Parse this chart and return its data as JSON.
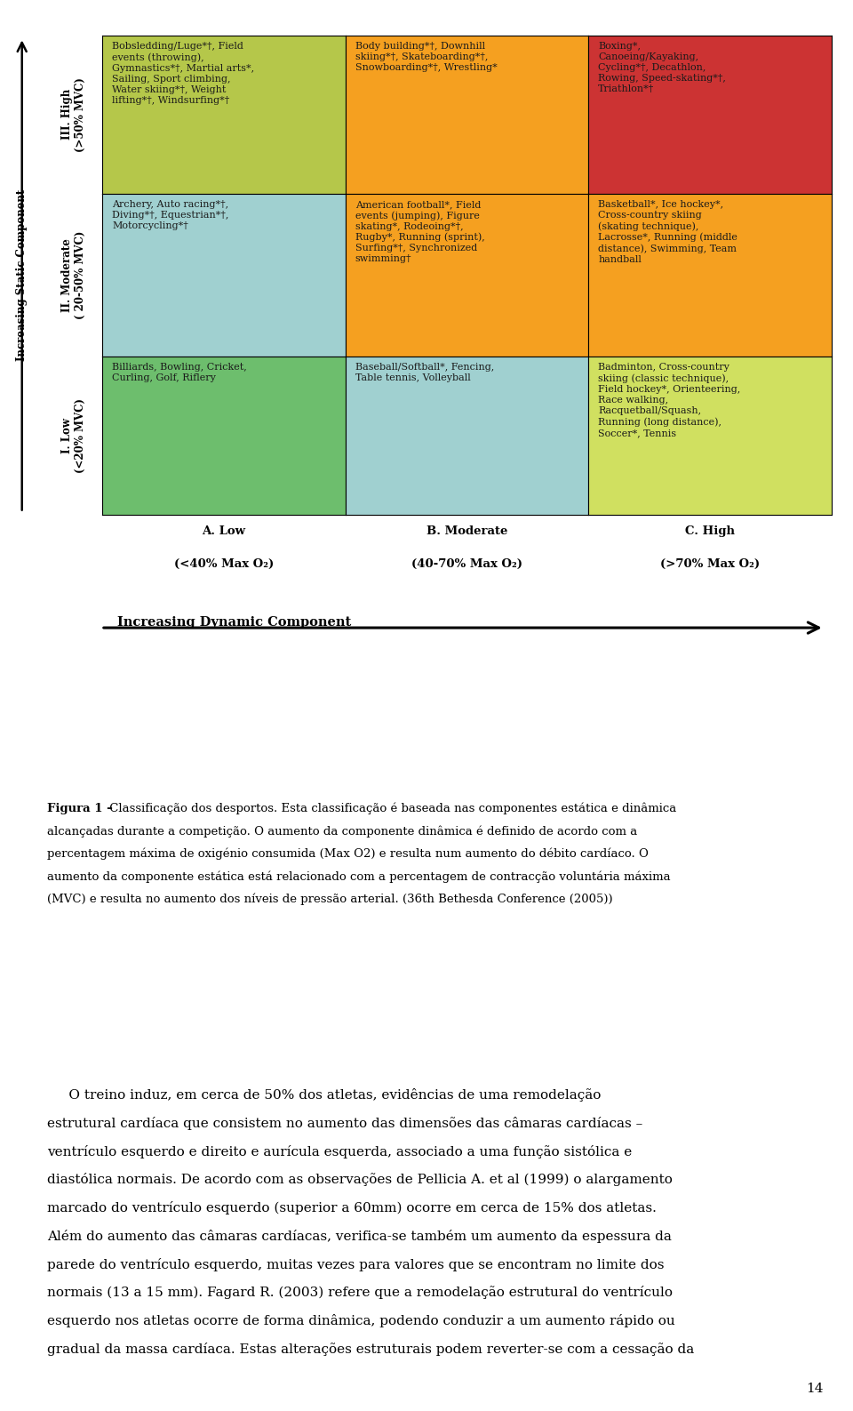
{
  "page_width": 9.6,
  "page_height": 15.87,
  "background_color": "#ffffff",
  "grid": {
    "rows": 3,
    "cols": 3,
    "row_labels": [
      "III. High\n(>50% MVC)",
      "II. Moderate\n( 20-50% MVC)",
      "I. Low\n(<20% MVC)"
    ],
    "col_labels_line1": [
      "A. Low",
      "B. Moderate",
      "C. High"
    ],
    "col_labels_line2": [
      "(<40% Max O₂)",
      "(40-70% Max O₂)",
      "(>70% Max O₂)"
    ],
    "cells": [
      [
        "Bobsledding/Luge*†, Field\nevents (throwing),\nGymnastics*†, Martial arts*,\nSailing, Sport climbing,\nWater skiing*†, Weight\nlifting*†, Windsurfing*†",
        "Body building*†, Downhill\nskiing*†, Skateboarding*†,\nSnowboarding*†, Wrestling*",
        "Boxing*,\nCanoeing/Kayaking,\nCycling*†, Decathlon,\nRowing, Speed-skating*†,\nTriathlon*†"
      ],
      [
        "Archery, Auto racing*†,\nDiving*†, Equestrian*†,\nMotorcycling*†",
        "American football*, Field\nevents (jumping), Figure\nskating*, Rodeoing*†,\nRugby*, Running (sprint),\nSurfing*†, Synchronized\nswimming†",
        "Basketball*, Ice hockey*,\nCross-country skiing\n(skating technique),\nLacrosse*, Running (middle\ndistance), Swimming, Team\nhandball"
      ],
      [
        "Billiards, Bowling, Cricket,\nCurling, Golf, Riflery",
        "Baseball/Softball*, Fencing,\nTable tennis, Volleyball",
        "Badminton, Cross-country\nskiing (classic technique),\nField hockey*, Orienteering,\nRace walking,\nRacquetball/Squash,\nRunning (long distance),\nSoccer*, Tennis"
      ]
    ],
    "cell_colors": [
      [
        "#b5c74a",
        "#f5a020",
        "#cc3333"
      ],
      [
        "#a0d0d0",
        "#f5a020",
        "#f5a020"
      ],
      [
        "#6dbe6d",
        "#a0d0d0",
        "#d0e060"
      ]
    ]
  },
  "increasing_static": "Increasing Static Component",
  "increasing_dynamic": "Increasing Dynamic Component",
  "caption_bold": "Figura 1 –",
  "caption_rest": " Classificação dos desportos. Esta classificação é baseada nas componentes estática e dinâmica alcançadas durante a competição. O aumento da componente dinâmica é definido de acordo com a percentagem máxima de oxigénio consumida (Max O2) e resulta num aumento do débito cardíaco. O aumento da componente estática está relacionado com a percentagem de contracção voluntária máxima (MVC) e resulta no aumento dos níveis de pressão arterial.",
  "caption_italic": "36th Bethesda Conference",
  "caption_end": " (2005))",
  "body_lines": [
    "     O treino induz, em cerca de 50% dos atletas, evidências de uma remodelação",
    "estrutural cardíaca que consistem no aumento das dimensões das câmaras cardíacas –",
    "ventrículo esquerdo e direito e aurícula esquerda, associado a uma função sistólica e",
    "diastólica normais. De acordo com as observações de Pellicia A. et al (1999) o alargamento",
    "marcado do ventrículo esquerdo (superior a 60mm) ocorre em cerca de 15% dos atletas.",
    "Além do aumento das câmaras cardíacas, verifica-se também um aumento da espessura da",
    "parede do ventrículo esquerdo, muitas vezes para valores que se encontram no limite dos",
    "normais (13 a 15 mm). Fagard R. (2003) refere que a remodelação estrutural do ventrículo",
    "esquerdo nos atletas ocorre de forma dinâmica, podendo conduzir a um aumento rápido ou",
    "gradual da massa cardíaca. Estas alterações estruturais podem reverter-se com a cessação da"
  ],
  "page_number": "14",
  "text_color": "#000000",
  "cell_text_color": "#1a1a1a",
  "font_size_cell": 8.0,
  "font_size_row_label": 8.5,
  "font_size_col_label": 9.5,
  "font_size_main_label": 8.5,
  "font_size_caption": 9.5,
  "font_size_body": 11.0,
  "font_size_page_num": 11
}
